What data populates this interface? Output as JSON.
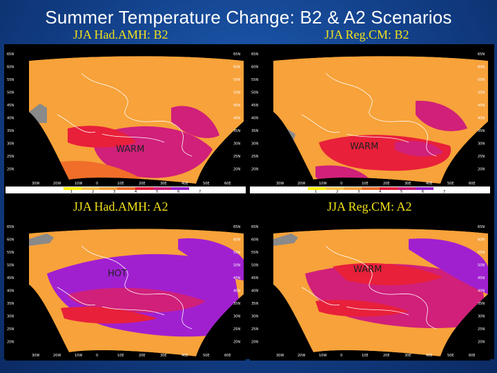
{
  "slide": {
    "title": "Summer Temperature Change: B2 & A2 Scenarios"
  },
  "colors": {
    "background": "#17479a",
    "title_text": "#ffffff",
    "panel_label": "#f3e21a",
    "map_background": "#000000",
    "no_data": "#8a8a8a",
    "scale": [
      "#fff200",
      "#fdc24a",
      "#f7a23a",
      "#f06e2a",
      "#e8203a",
      "#d0207a",
      "#a020d0"
    ]
  },
  "panels": [
    {
      "id": "had-b2",
      "label": "JJA Had.AMH: B2",
      "region_text": "WARM",
      "lat_labels": [
        "65N",
        "60N",
        "55N",
        "50N",
        "45N",
        "40N",
        "35N",
        "30N",
        "25N",
        "20N"
      ],
      "lon_labels": [
        "30W",
        "20W",
        "10W",
        "0",
        "10E",
        "20E",
        "30E",
        "40E",
        "50E",
        "60E"
      ],
      "colorbar_labels": [
        "1",
        "2",
        "3",
        "4",
        "5",
        "6",
        "7"
      ]
    },
    {
      "id": "reg-b2",
      "label": "JJA Reg.CM: B2",
      "region_text": "WARM",
      "lat_labels": [
        "65N",
        "60N",
        "55N",
        "50N",
        "45N",
        "40N",
        "35N",
        "30N",
        "25N",
        "20N"
      ],
      "lon_labels": [
        "30W",
        "20W",
        "10W",
        "0",
        "10E",
        "20E",
        "30E",
        "40E",
        "50E",
        "60E"
      ],
      "colorbar_labels": [
        "1",
        "2",
        "3",
        "4",
        "5",
        "6",
        "7"
      ]
    },
    {
      "id": "had-a2",
      "label": "JJA Had.AMH: A2",
      "region_text": "HOT",
      "lat_labels": [
        "65N",
        "60N",
        "55N",
        "50N",
        "45N",
        "40N",
        "35N",
        "30N",
        "25N",
        "20N"
      ],
      "lon_labels": [
        "30W",
        "20W",
        "10W",
        "0",
        "10E",
        "20E",
        "30E",
        "40E",
        "50E",
        "60E"
      ]
    },
    {
      "id": "reg-a2",
      "label": "JJA Reg.CM: A2",
      "region_text": "WARM",
      "lat_labels": [
        "65N",
        "60N",
        "55N",
        "50N",
        "45N",
        "40N",
        "35N",
        "30N",
        "25N",
        "20N"
      ],
      "lon_labels": [
        "30W",
        "20W",
        "10W",
        "0",
        "10E",
        "20E",
        "30E",
        "40E",
        "50E",
        "60E"
      ]
    }
  ]
}
